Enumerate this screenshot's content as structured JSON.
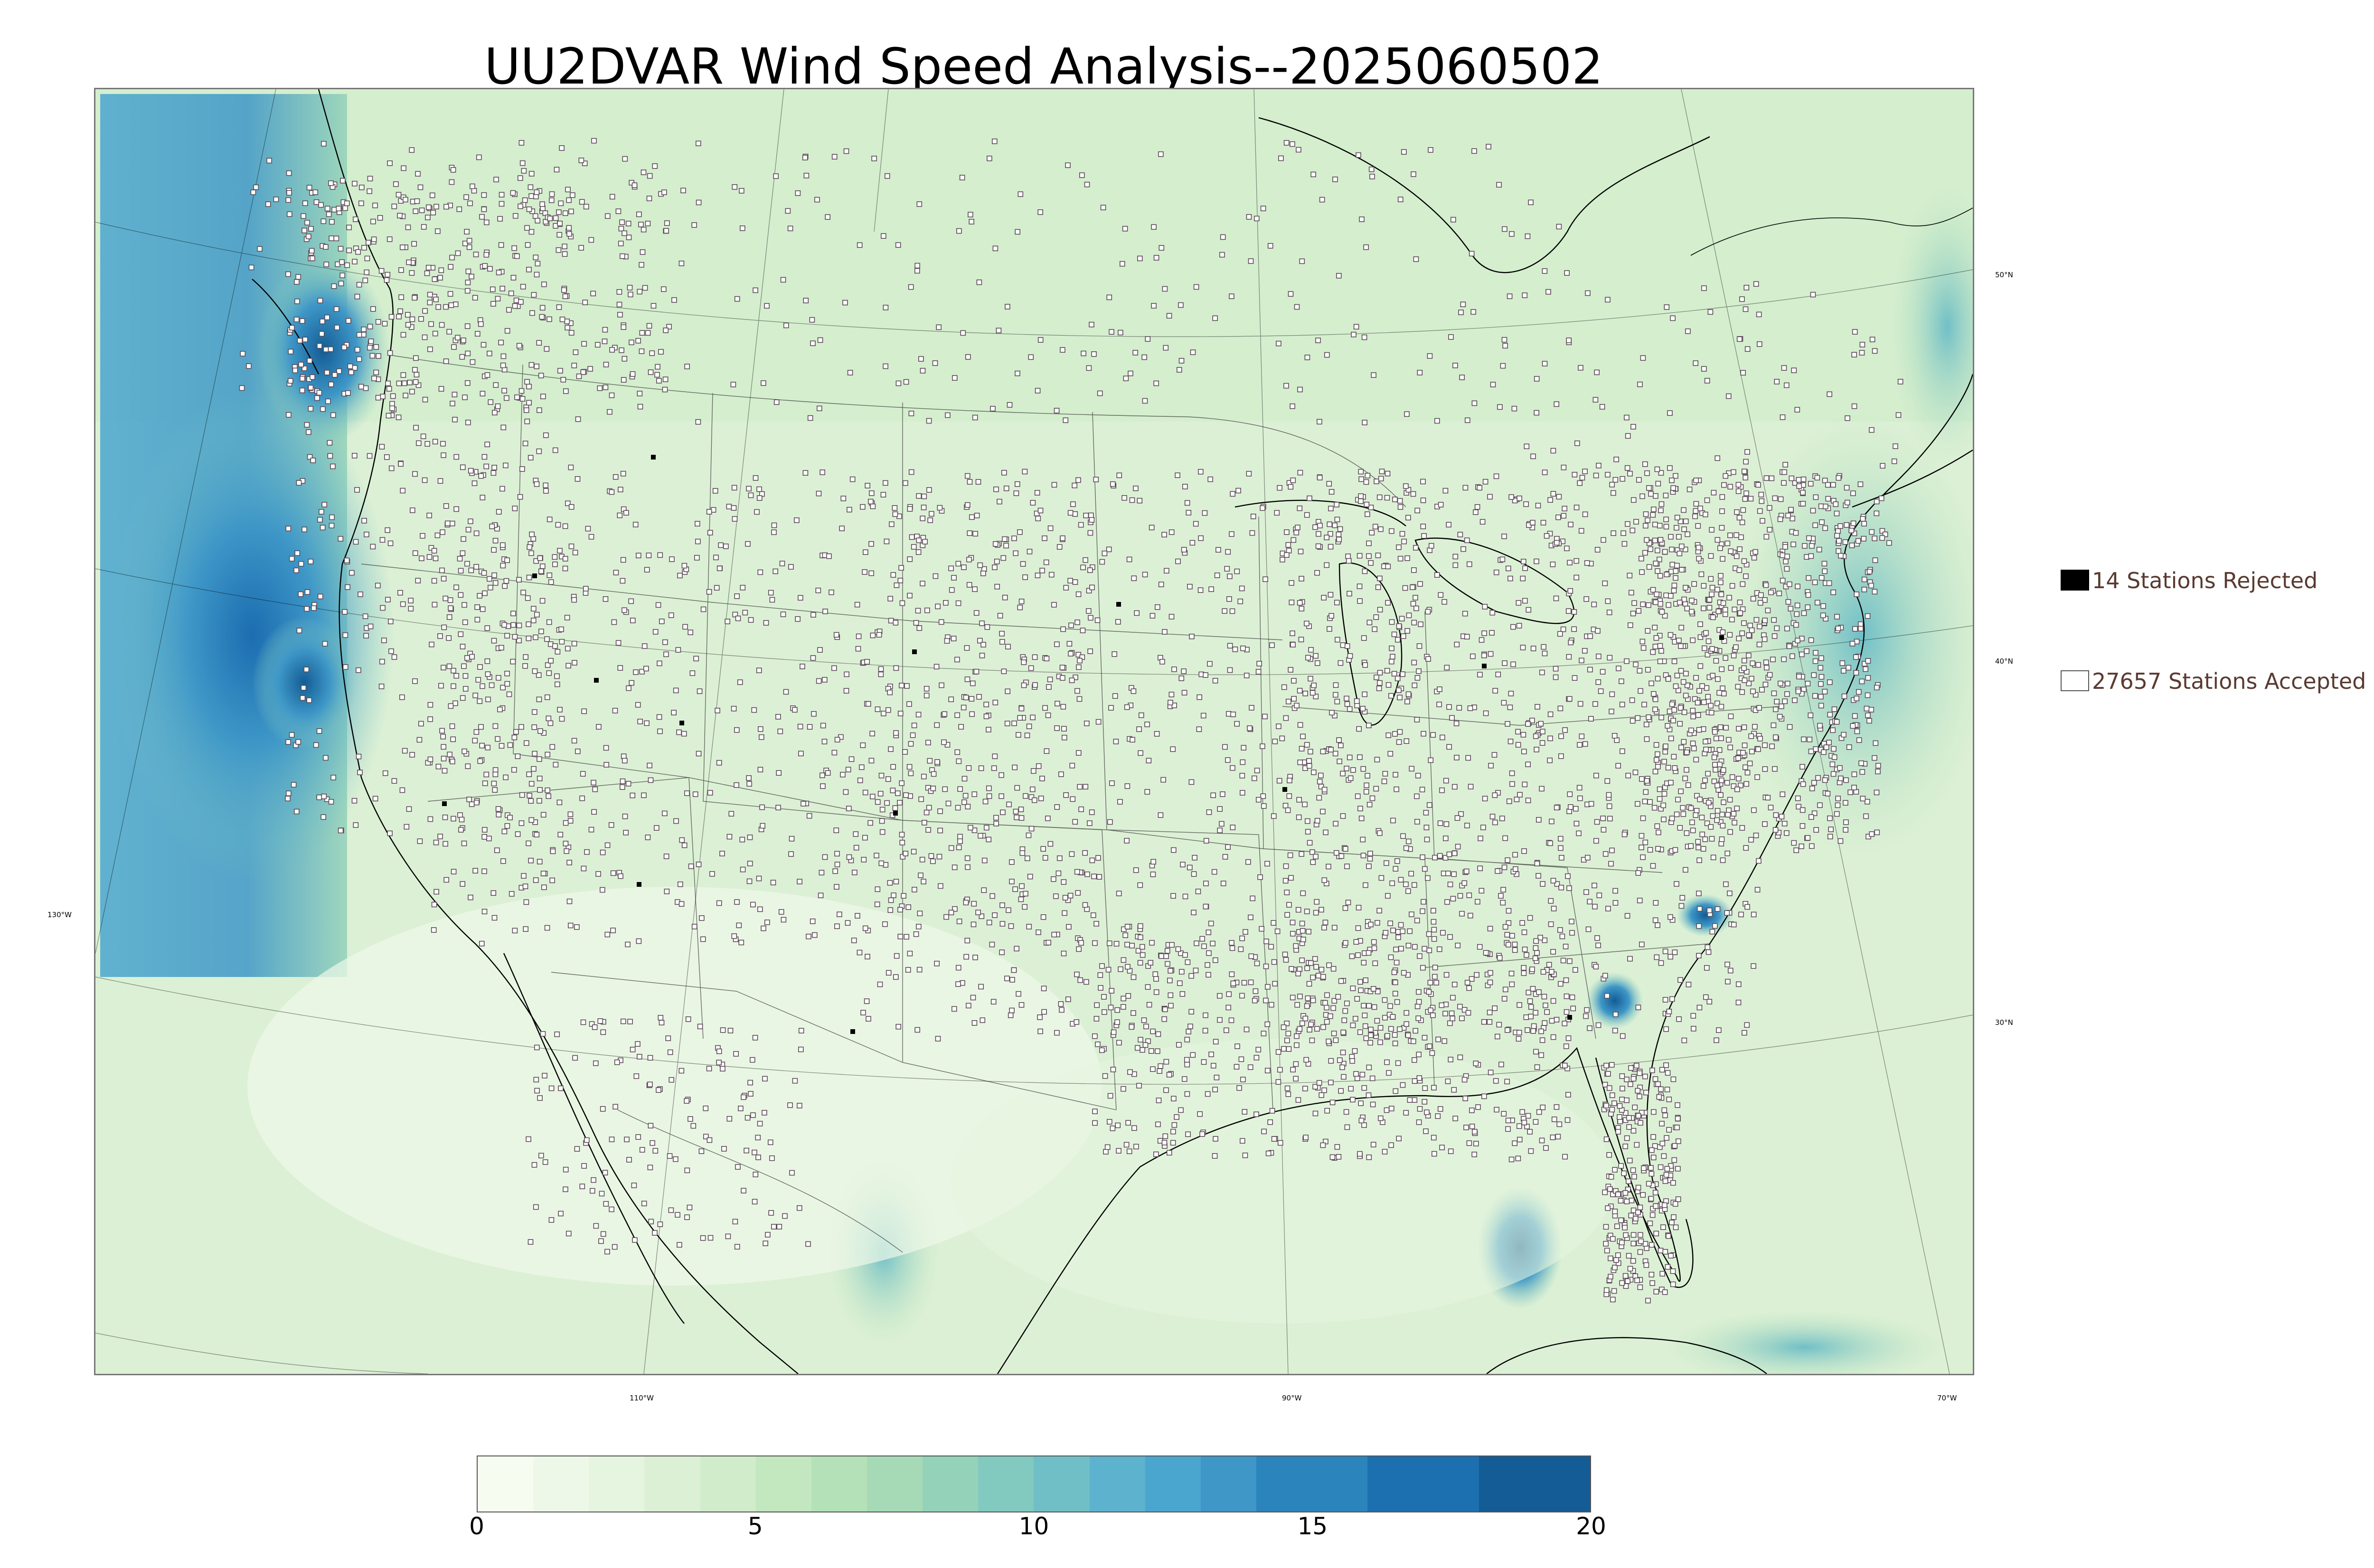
{
  "title": "UU2DVAR Wind Speed Analysis--2025060502",
  "map": {
    "projection": "lambert-conformal",
    "background_field": "wind-speed",
    "colors": {
      "land_light": "#e4f4d8",
      "land_mid": "#c3e8c0",
      "ocean_high": "#3fa0d0",
      "ocean_max": "#1b6db0",
      "coastline": "#000000",
      "station_outline": "#5a4a55"
    },
    "longitude_labels": [
      "130°W",
      "110°W",
      "90°W",
      "70°W"
    ],
    "latitude_labels": [
      "50°N",
      "40°N",
      "30°N"
    ]
  },
  "legend": {
    "rejected": {
      "label": "14 Stations Rejected",
      "swatch_color": "#000000"
    },
    "accepted": {
      "label": "27657 Stations Accepted",
      "swatch_color": "#ffffff"
    }
  },
  "colorbar": {
    "min": 0,
    "max": 20,
    "ticks": [
      "0",
      "5",
      "10",
      "15",
      "20"
    ],
    "tick_values": [
      0,
      5,
      10,
      15,
      20
    ],
    "levels": [
      0,
      1,
      2,
      3,
      4,
      5,
      6,
      7,
      8,
      9,
      10,
      11,
      12,
      13,
      14,
      16,
      18,
      20
    ],
    "colors": [
      "#f7fcf0",
      "#eef8e8",
      "#e6f5e0",
      "#dcf0d5",
      "#d0ecca",
      "#c3e7bf",
      "#b5e1b8",
      "#a6dab6",
      "#94d2b9",
      "#82c9bf",
      "#70bfc7",
      "#5db3cd",
      "#4ba6cf",
      "#3e97c7",
      "#2c84bd",
      "#1c70b0",
      "#135c95"
    ]
  }
}
